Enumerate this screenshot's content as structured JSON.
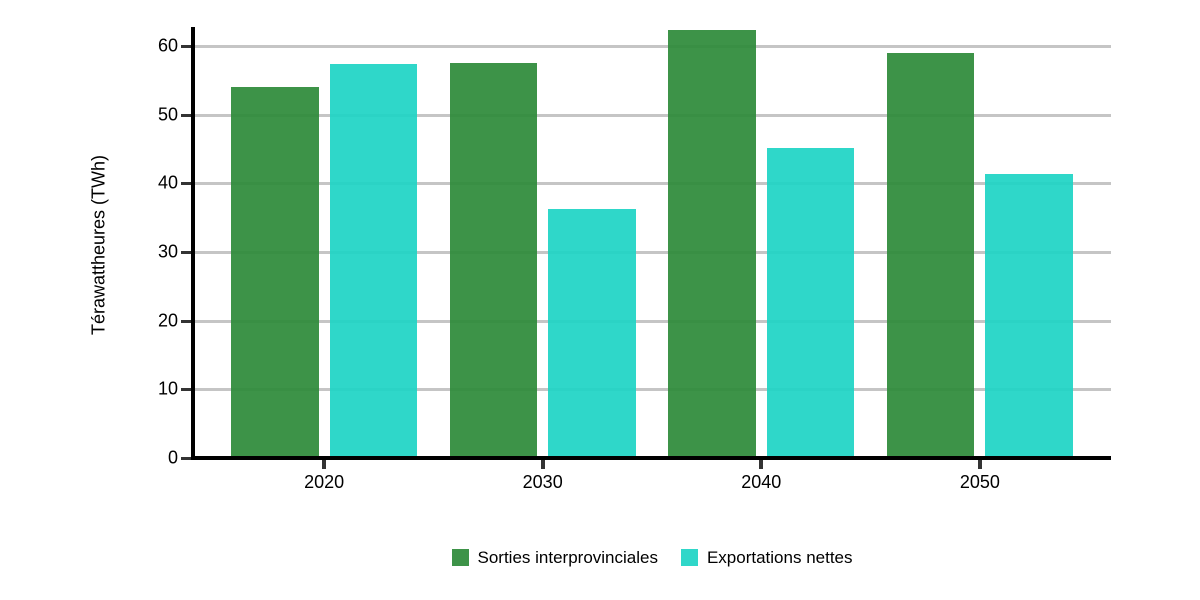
{
  "chart_data": {
    "type": "bar",
    "categories": [
      "2020",
      "2030",
      "2040",
      "2050"
    ],
    "series": [
      {
        "name": "Sorties interprovinciales",
        "color": "#2e8b3a",
        "values": [
          54.0,
          57.5,
          62.4,
          59.0
        ]
      },
      {
        "name": "Exportations nettes",
        "color": "#1fd4c5",
        "values": [
          57.4,
          36.3,
          45.1,
          41.4
        ]
      }
    ],
    "title": "",
    "xlabel": "",
    "ylabel": "Térawattheures (TWh)",
    "yticks": [
      0,
      10,
      20,
      30,
      40,
      50,
      60
    ],
    "ylim": [
      0,
      62.6
    ],
    "grid": "horizontal",
    "gridline_color": "#c5c5c5",
    "axis_color": "#000000",
    "legend_position": "bottom"
  }
}
